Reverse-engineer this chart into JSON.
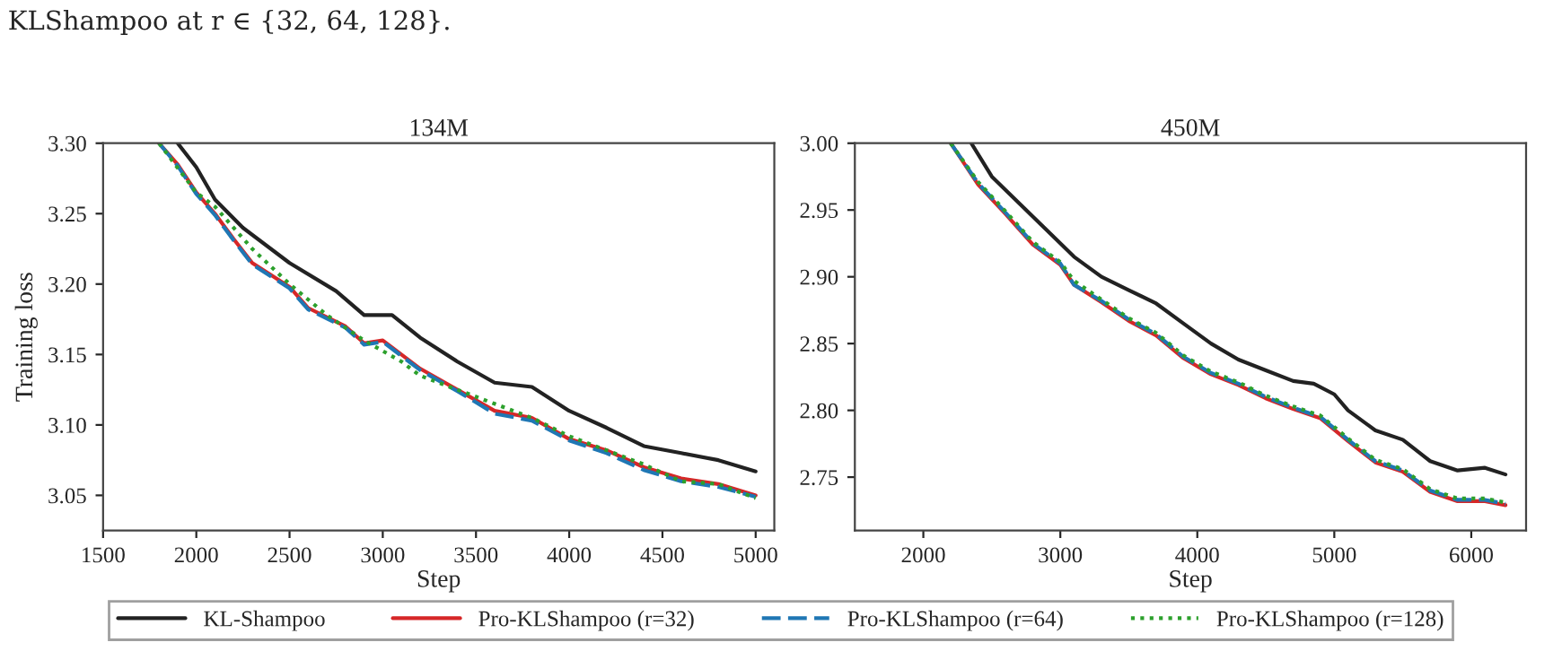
{
  "chart_data": [
    {
      "type": "line",
      "title": "134M",
      "xlabel": "Step",
      "ylabel": "Training loss",
      "annotations": [
        "KLShampoo at r ∈ {32, 64, 128}."
      ],
      "xlim": [
        1500,
        5100
      ],
      "ylim": [
        3.025,
        3.3
      ],
      "xticks": [
        1500,
        2000,
        2500,
        3000,
        3500,
        4000,
        4500,
        5000
      ],
      "yticks": [
        {
          "value": 3.05,
          "label": "3.05"
        },
        {
          "value": 3.1,
          "label": "3.10"
        },
        {
          "value": 3.15,
          "label": "3.15"
        },
        {
          "value": 3.2,
          "label": "3.20"
        },
        {
          "value": 3.25,
          "label": "3.25"
        },
        {
          "value": 3.3,
          "label": "3.30"
        }
      ],
      "legend": "bottom",
      "grid": false,
      "series": [
        {
          "name": "KL-Shampoo",
          "color": "#222222",
          "line_style": "solid",
          "x": [
            1900,
            2000,
            2100,
            2250,
            2500,
            2750,
            2900,
            3050,
            3200,
            3400,
            3600,
            3800,
            4000,
            4200,
            4400,
            4600,
            4800,
            5000
          ],
          "values": [
            3.3,
            3.283,
            3.26,
            3.24,
            3.215,
            3.195,
            3.178,
            3.178,
            3.162,
            3.145,
            3.13,
            3.127,
            3.11,
            3.098,
            3.085,
            3.08,
            3.075,
            3.067
          ]
        },
        {
          "name": "Pro-KLShampoo (r=32)",
          "color": "#d62728",
          "line_style": "solid",
          "x": [
            1800,
            1900,
            2000,
            2100,
            2200,
            2300,
            2500,
            2600,
            2800,
            2900,
            3000,
            3100,
            3200,
            3400,
            3600,
            3800,
            4000,
            4200,
            4400,
            4600,
            4800,
            5000
          ],
          "values": [
            3.3,
            3.285,
            3.265,
            3.25,
            3.232,
            3.215,
            3.198,
            3.183,
            3.17,
            3.158,
            3.16,
            3.15,
            3.14,
            3.125,
            3.11,
            3.105,
            3.09,
            3.082,
            3.07,
            3.062,
            3.058,
            3.05
          ]
        },
        {
          "name": "Pro-KLShampoo (r=64)",
          "color": "#1f77b4",
          "line_style": "dashed",
          "x": [
            1800,
            1900,
            2000,
            2100,
            2200,
            2300,
            2500,
            2600,
            2800,
            2900,
            3000,
            3100,
            3200,
            3400,
            3600,
            3800,
            4000,
            4200,
            4400,
            4600,
            4800,
            5000
          ],
          "values": [
            3.3,
            3.284,
            3.264,
            3.249,
            3.231,
            3.214,
            3.197,
            3.182,
            3.169,
            3.157,
            3.159,
            3.149,
            3.139,
            3.124,
            3.108,
            3.103,
            3.089,
            3.08,
            3.068,
            3.06,
            3.056,
            3.049
          ]
        },
        {
          "name": "Pro-KLShampoo (r=128)",
          "color": "#2ca02c",
          "line_style": "dotted",
          "x": [
            1800,
            2000,
            2100,
            2300,
            2500,
            2700,
            2900,
            3100,
            3200,
            3400,
            3600,
            3800,
            4000,
            4200,
            4400,
            4600,
            4800,
            5000
          ],
          "values": [
            3.3,
            3.265,
            3.255,
            3.225,
            3.2,
            3.178,
            3.16,
            3.145,
            3.135,
            3.125,
            3.115,
            3.105,
            3.092,
            3.082,
            3.072,
            3.06,
            3.058,
            3.048
          ]
        }
      ]
    },
    {
      "type": "line",
      "title": "450M",
      "xlabel": "Step",
      "xlim": [
        1500,
        6400
      ],
      "ylim": [
        2.71,
        3.0
      ],
      "xticks": [
        2000,
        3000,
        4000,
        5000,
        6000
      ],
      "yticks": [
        {
          "value": 2.75,
          "label": "2.75"
        },
        {
          "value": 2.8,
          "label": "2.80"
        },
        {
          "value": 2.85,
          "label": "2.85"
        },
        {
          "value": 2.9,
          "label": "2.90"
        },
        {
          "value": 2.95,
          "label": "2.95"
        },
        {
          "value": 3.0,
          "label": "3.00"
        }
      ],
      "grid": false,
      "series": [
        {
          "color": "#222222",
          "line_style": "solid",
          "x": [
            2350,
            2500,
            2700,
            2900,
            3100,
            3300,
            3500,
            3700,
            3900,
            4100,
            4300,
            4500,
            4700,
            4850,
            5000,
            5100,
            5300,
            5500,
            5700,
            5900,
            6100,
            6250
          ],
          "values": [
            3.0,
            2.975,
            2.955,
            2.935,
            2.915,
            2.9,
            2.89,
            2.88,
            2.865,
            2.85,
            2.838,
            2.83,
            2.822,
            2.82,
            2.812,
            2.8,
            2.785,
            2.778,
            2.762,
            2.755,
            2.757,
            2.752
          ]
        },
        {
          "color": "#d62728",
          "line_style": "solid",
          "x": [
            2200,
            2400,
            2600,
            2800,
            3000,
            3100,
            3300,
            3500,
            3700,
            3900,
            4100,
            4300,
            4500,
            4700,
            4900,
            5100,
            5300,
            5500,
            5700,
            5900,
            6100,
            6250
          ],
          "values": [
            3.0,
            2.969,
            2.947,
            2.924,
            2.909,
            2.894,
            2.881,
            2.867,
            2.856,
            2.839,
            2.827,
            2.819,
            2.809,
            2.801,
            2.794,
            2.777,
            2.761,
            2.754,
            2.739,
            2.732,
            2.732,
            2.729
          ]
        },
        {
          "color": "#1f77b4",
          "line_style": "dashed",
          "x": [
            2200,
            2400,
            2600,
            2800,
            3000,
            3100,
            3300,
            3500,
            3700,
            3900,
            4100,
            4300,
            4500,
            4700,
            4900,
            5100,
            5300,
            5500,
            5700,
            5900,
            6100,
            6250
          ],
          "values": [
            3.0,
            2.97,
            2.948,
            2.925,
            2.91,
            2.894,
            2.882,
            2.868,
            2.857,
            2.84,
            2.828,
            2.82,
            2.81,
            2.802,
            2.795,
            2.778,
            2.762,
            2.755,
            2.74,
            2.733,
            2.733,
            2.73
          ]
        },
        {
          "color": "#2ca02c",
          "line_style": "dotted",
          "x": [
            2200,
            2400,
            2600,
            2800,
            3000,
            3100,
            3300,
            3500,
            3700,
            3900,
            4100,
            4300,
            4500,
            4700,
            4900,
            5100,
            5300,
            5500,
            5700,
            5900,
            6100,
            6250
          ],
          "values": [
            3.0,
            2.971,
            2.949,
            2.926,
            2.911,
            2.897,
            2.883,
            2.869,
            2.858,
            2.841,
            2.829,
            2.821,
            2.811,
            2.803,
            2.796,
            2.779,
            2.763,
            2.756,
            2.741,
            2.734,
            2.734,
            2.731
          ]
        }
      ]
    }
  ]
}
